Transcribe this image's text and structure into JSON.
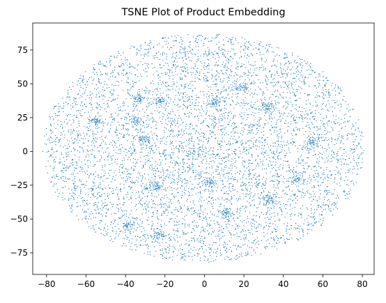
{
  "chart_data": {
    "type": "scatter",
    "title": "TSNE Plot of Product Embedding",
    "xlabel": "",
    "ylabel": "",
    "xlim": [
      -87,
      86
    ],
    "ylim": [
      -91,
      95
    ],
    "x_ticks": [
      -80,
      -60,
      -40,
      -20,
      0,
      20,
      40,
      60,
      80
    ],
    "y_ticks": [
      -75,
      -50,
      -25,
      0,
      25,
      50,
      75
    ],
    "grid": false,
    "marker_color": "#1f77b4",
    "point_cloud": {
      "shape": "ellipse",
      "x_range": [
        -82,
        81
      ],
      "y_range": [
        -82,
        87
      ],
      "approx_point_count": 6000
    },
    "dense_clusters": [
      {
        "x": 19,
        "y": 47
      },
      {
        "x": -35,
        "y": 23
      },
      {
        "x": 5,
        "y": 36
      },
      {
        "x": 32,
        "y": 33
      },
      {
        "x": -31,
        "y": 9
      },
      {
        "x": 55,
        "y": 7
      },
      {
        "x": -55,
        "y": 23
      },
      {
        "x": -22,
        "y": 37
      },
      {
        "x": 3,
        "y": -23
      },
      {
        "x": 47,
        "y": -21
      },
      {
        "x": 33,
        "y": -36
      },
      {
        "x": 11,
        "y": -46
      },
      {
        "x": -23,
        "y": -62
      },
      {
        "x": -39,
        "y": -55
      },
      {
        "x": -25,
        "y": -26
      },
      {
        "x": -33,
        "y": 39
      }
    ]
  }
}
